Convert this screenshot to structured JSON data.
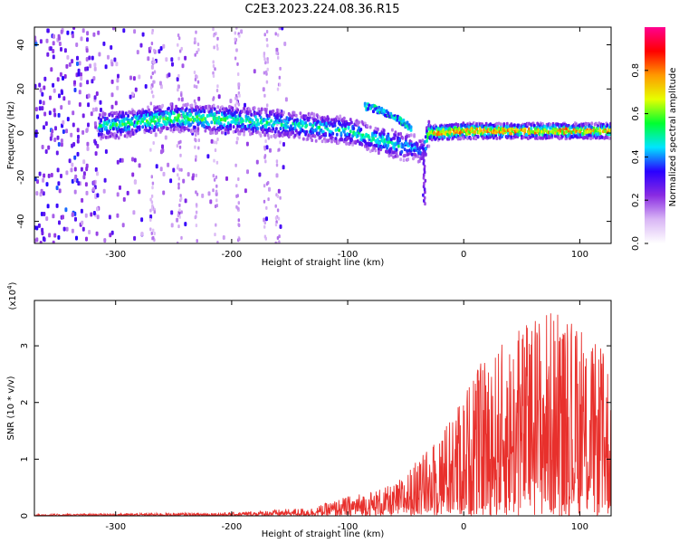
{
  "title": "C2E3.2023.224.08.36.R15",
  "chart_data": [
    {
      "type": "heatmap",
      "title": "C2E3.2023.224.08.36.R15",
      "xlabel": "Height of straight line (km)",
      "ylabel": "Frequency (Hz)",
      "xlim": [
        -370,
        127
      ],
      "ylim": [
        -50,
        48
      ],
      "xticks": [
        -300,
        -200,
        -100,
        0,
        100
      ],
      "yticks": [
        -40,
        -20,
        0,
        20,
        40
      ],
      "colorbar": {
        "label": "Normalized spectral amplitude",
        "range": [
          0.0,
          1.0
        ],
        "ticks": [
          0.0,
          0.2,
          0.4,
          0.6,
          0.8
        ],
        "colormap": [
          "#ffffff",
          "#d9b6f5",
          "#8a2be2",
          "#2a00ff",
          "#00e5ff",
          "#00ff30",
          "#e6ff00",
          "#ff9900",
          "#ff0000",
          "#ff0090"
        ]
      },
      "ridge": {
        "description_points": [
          {
            "x": -315,
            "freq": 3,
            "amp": 0.5
          },
          {
            "x": -250,
            "freq": 7,
            "amp": 0.6
          },
          {
            "x": -200,
            "freq": 6,
            "amp": 0.55
          },
          {
            "x": -150,
            "freq": 4,
            "amp": 0.5
          },
          {
            "x": -100,
            "freq": 1,
            "amp": 0.5
          },
          {
            "x": -60,
            "freq": -5,
            "amp": 0.5
          },
          {
            "x": -35,
            "freq": -8,
            "amp": 0.35
          },
          {
            "x": -30,
            "freq": 0,
            "amp": 0.7
          },
          {
            "x": 0,
            "freq": 1,
            "amp": 0.8
          },
          {
            "x": 50,
            "freq": 1,
            "amp": 0.7
          },
          {
            "x": 127,
            "freq": 1,
            "amp": 0.7
          }
        ],
        "branch": [
          {
            "x": -85,
            "freq": 12
          },
          {
            "x": -70,
            "freq": 10
          },
          {
            "x": -55,
            "freq": 6
          },
          {
            "x": -45,
            "freq": 2
          }
        ]
      }
    },
    {
      "type": "line",
      "xlabel": "Height of straight line (km)",
      "ylabel": "SNR (10 * v/v)",
      "yscale_label": "(x10",
      "yscale_exp": "4",
      "xlim": [
        -370,
        127
      ],
      "ylim": [
        0,
        3.8
      ],
      "xticks": [
        -300,
        -200,
        -100,
        0,
        100
      ],
      "yticks": [
        0,
        1,
        2,
        3
      ],
      "color": "#e8302c",
      "envelope": [
        {
          "x": -370,
          "y": 0.03
        },
        {
          "x": -200,
          "y": 0.06
        },
        {
          "x": -130,
          "y": 0.15
        },
        {
          "x": -100,
          "y": 0.35
        },
        {
          "x": -60,
          "y": 0.55
        },
        {
          "x": -30,
          "y": 1.2
        },
        {
          "x": -10,
          "y": 1.8
        },
        {
          "x": 10,
          "y": 2.6
        },
        {
          "x": 40,
          "y": 3.2
        },
        {
          "x": 70,
          "y": 3.75
        },
        {
          "x": 100,
          "y": 3.3
        },
        {
          "x": 127,
          "y": 2.8
        }
      ]
    }
  ]
}
